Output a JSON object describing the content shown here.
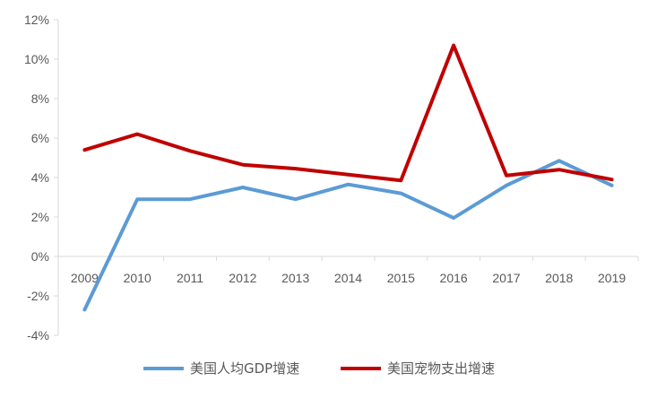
{
  "chart_data": {
    "type": "line",
    "categories": [
      "2009",
      "2010",
      "2011",
      "2012",
      "2013",
      "2014",
      "2015",
      "2016",
      "2017",
      "2018",
      "2019"
    ],
    "series": [
      {
        "name": "美国人均GDP增速",
        "color": "#5B9BD5",
        "values": [
          -2.7,
          2.9,
          2.9,
          3.5,
          2.9,
          3.65,
          3.2,
          1.95,
          3.6,
          4.85,
          3.6
        ]
      },
      {
        "name": "美国宠物支出增速",
        "color": "#C00000",
        "values": [
          5.4,
          6.2,
          5.35,
          4.65,
          4.45,
          4.15,
          3.85,
          10.7,
          4.1,
          4.4,
          3.9
        ]
      }
    ],
    "ylim": [
      -4,
      12
    ],
    "yticks": [
      -4,
      -2,
      0,
      2,
      4,
      6,
      8,
      10,
      12
    ],
    "ytick_labels": [
      "-4%",
      "-2%",
      "0%",
      "2%",
      "4%",
      "6%",
      "8%",
      "10%",
      "12%"
    ],
    "grid": false,
    "legend_position": "bottom",
    "title": "",
    "xlabel": "",
    "ylabel": ""
  }
}
